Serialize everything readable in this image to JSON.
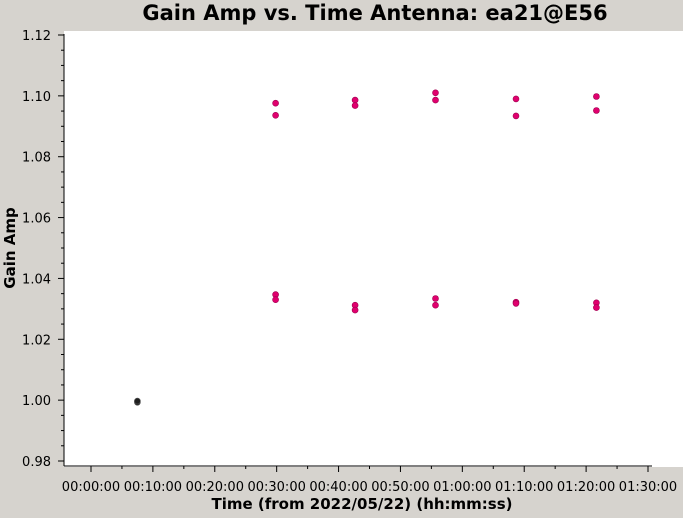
{
  "chart_data": {
    "type": "scatter",
    "title": "Gain Amp vs. Time Antenna: ea21@E56",
    "xlabel": "Time (from 2022/05/22) (hh:mm:ss)",
    "ylabel": "Gain Amp",
    "xlim": [
      "00:00:00",
      "01:30:00"
    ],
    "ylim": [
      0.98,
      1.12
    ],
    "x_ticks": [
      "00:00:00",
      "00:10:00",
      "00:20:00",
      "00:30:00",
      "00:40:00",
      "00:50:00",
      "01:00:00",
      "01:10:00",
      "01:20:00",
      "01:30:00"
    ],
    "y_ticks": [
      "0.98",
      "1.00",
      "1.02",
      "1.04",
      "1.06",
      "1.08",
      "1.10",
      "1.12"
    ],
    "grid": false,
    "series": [
      {
        "color": "#1f1f1f",
        "points": [
          {
            "x": "00:07:30",
            "y": 0.9993
          },
          {
            "x": "00:07:30",
            "y": 0.9997
          }
        ]
      },
      {
        "color": "#e0006e",
        "points": [
          {
            "x": "00:29:50",
            "y": 1.0976
          },
          {
            "x": "00:29:50",
            "y": 1.0936
          },
          {
            "x": "00:29:50",
            "y": 1.0347
          },
          {
            "x": "00:29:50",
            "y": 1.033
          },
          {
            "x": "00:42:40",
            "y": 1.0986
          },
          {
            "x": "00:42:40",
            "y": 1.0968
          },
          {
            "x": "00:42:40",
            "y": 1.0312
          },
          {
            "x": "00:42:40",
            "y": 1.0296
          },
          {
            "x": "00:55:40",
            "y": 1.101
          },
          {
            "x": "00:55:40",
            "y": 1.0986
          },
          {
            "x": "00:55:40",
            "y": 1.0334
          },
          {
            "x": "00:55:40",
            "y": 1.0312
          },
          {
            "x": "01:08:40",
            "y": 1.099
          },
          {
            "x": "01:08:40",
            "y": 1.0934
          },
          {
            "x": "01:08:40",
            "y": 1.0322
          },
          {
            "x": "01:08:40",
            "y": 1.0318
          },
          {
            "x": "01:21:40",
            "y": 1.0998
          },
          {
            "x": "01:21:40",
            "y": 1.0952
          },
          {
            "x": "01:21:40",
            "y": 1.032
          },
          {
            "x": "01:21:40",
            "y": 1.0304
          }
        ]
      }
    ]
  }
}
